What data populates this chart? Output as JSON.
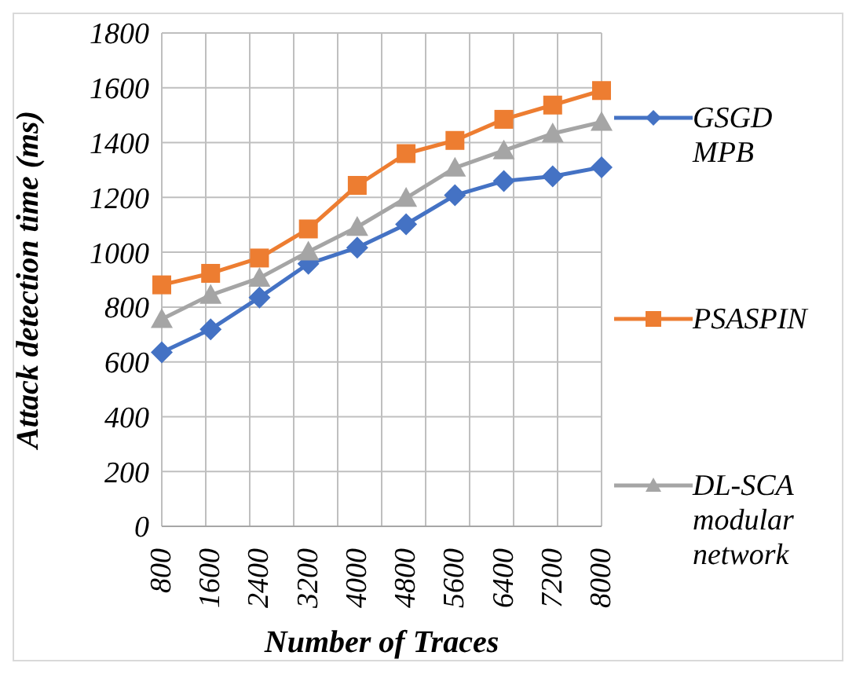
{
  "chart_data": {
    "type": "line",
    "xlabel": "Number of Traces",
    "ylabel": "Attack detection time (ms)",
    "categories": [
      "800",
      "1600",
      "2400",
      "3200",
      "4000",
      "4800",
      "5600",
      "6400",
      "7200",
      "8000"
    ],
    "series": [
      {
        "name": "GSGD MPB",
        "color": "#4472c4",
        "marker": "diamond",
        "values": [
          635,
          719,
          835,
          958,
          1017,
          1102,
          1208,
          1260,
          1277,
          1310
        ]
      },
      {
        "name": "PSASPIN",
        "color": "#ed7d31",
        "marker": "square",
        "values": [
          881,
          923,
          979,
          1085,
          1244,
          1360,
          1408,
          1485,
          1537,
          1590
        ]
      },
      {
        "name": "DL-SCA modular network",
        "color": "#a5a5a5",
        "marker": "triangle",
        "values": [
          756,
          844,
          906,
          1002,
          1092,
          1198,
          1308,
          1371,
          1433,
          1475
        ]
      }
    ],
    "ylim": [
      0,
      1800
    ],
    "yticks": [
      0,
      200,
      400,
      600,
      800,
      1000,
      1200,
      1400,
      1600,
      1800
    ],
    "grid": true,
    "legend": "right",
    "line_style": "solid"
  }
}
